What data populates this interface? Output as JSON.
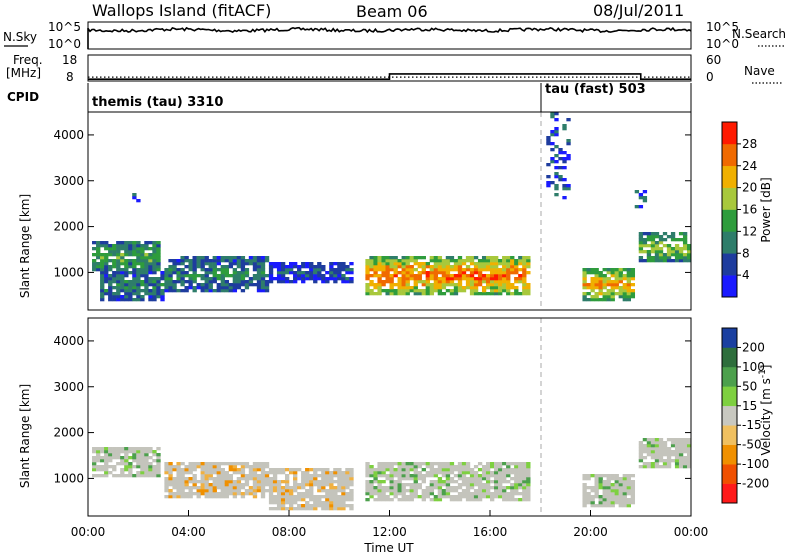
{
  "header": {
    "station": "Wallops Island (fitACF)",
    "beam": "Beam 06",
    "date": "08/Jul/2011"
  },
  "status_panels": {
    "nsky_label": "N.Sky",
    "nsearch_label": "N.Search",
    "noise_ticks": [
      "10^5",
      "10^0"
    ],
    "freq_label": "Freq.",
    "freq_unit": "[MHz]",
    "freq_ticks": [
      "18",
      "8"
    ],
    "nave_label": "Nave",
    "nave_ticks": [
      "60",
      "0"
    ],
    "cpid_label": "CPID",
    "cpid_modes": [
      {
        "name": "themis (tau) 3310",
        "start_hour": 0
      },
      {
        "name": "tau (fast) 503",
        "start_hour": 18
      }
    ],
    "freq_steps_mhz": [
      [
        0,
        8.7
      ],
      [
        12.0,
        10.7
      ],
      [
        22.0,
        8.7
      ],
      [
        24,
        8.7
      ]
    ],
    "nave_steps": [
      [
        0,
        9
      ],
      [
        12.0,
        9
      ],
      [
        18.0,
        9
      ],
      [
        24,
        9
      ]
    ]
  },
  "chart_data": [
    {
      "type": "heatmap",
      "panel": "power",
      "xlabel": "",
      "ylabel": "Slant Range [km]",
      "ylim": [
        180,
        4500
      ],
      "xlim_hours": [
        0,
        24
      ],
      "yticks": [
        1000,
        2000,
        3000,
        4000
      ],
      "colorbar": {
        "label": "Power [dB]",
        "ticks": [
          "4",
          "8",
          "12",
          "16",
          "20",
          "24",
          "28"
        ],
        "colors": [
          "#1a1aff",
          "#1e3c9e",
          "#2e7d6a",
          "#2e9c3c",
          "#a8c83c",
          "#f0b000",
          "#f06a00",
          "#ff1a00"
        ]
      },
      "echo_regions": [
        {
          "t0": 0.1,
          "t1": 2.9,
          "r0": 1000,
          "r1": 1700,
          "level": 0.45
        },
        {
          "t0": 0.5,
          "t1": 3.0,
          "r0": 400,
          "r1": 1000,
          "level": 0.35
        },
        {
          "t0": 3.0,
          "t1": 7.2,
          "r0": 550,
          "r1": 1350,
          "level": 0.35
        },
        {
          "t0": 7.2,
          "t1": 10.5,
          "r0": 800,
          "r1": 1250,
          "level": 0.2
        },
        {
          "t0": 11.0,
          "t1": 17.6,
          "r0": 500,
          "r1": 1350,
          "level": 0.85
        },
        {
          "t0": 19.7,
          "t1": 21.7,
          "r0": 400,
          "r1": 1100,
          "level": 0.75
        },
        {
          "t0": 22.0,
          "t1": 24.0,
          "r0": 1200,
          "r1": 1900,
          "level": 0.55
        }
      ],
      "scatter_regions": [
        {
          "t0": 18.2,
          "t1": 19.2,
          "r0": 2600,
          "r1": 4500
        },
        {
          "t0": 1.8,
          "t1": 2.1,
          "r0": 2400,
          "r1": 2700
        },
        {
          "t0": 21.8,
          "t1": 22.3,
          "r0": 2300,
          "r1": 2800
        }
      ]
    },
    {
      "type": "heatmap",
      "panel": "velocity",
      "xlabel": "Time UT",
      "ylabel": "Slant Range [km]",
      "ylim": [
        180,
        4500
      ],
      "xlim_hours": [
        0,
        24
      ],
      "yticks": [
        1000,
        2000,
        3000,
        4000
      ],
      "xticks": [
        "00:00",
        "04:00",
        "08:00",
        "12:00",
        "16:00",
        "20:00",
        "00:00"
      ],
      "colorbar": {
        "label": "Velocity [m s^-1]",
        "ticks": [
          "200",
          "100",
          "50",
          "15",
          "-15",
          "-50",
          "-100",
          "-200"
        ],
        "colors": [
          "#1a3fa0",
          "#2e6e3c",
          "#4ca04c",
          "#7ed040",
          "#c8c8c0",
          "#f0c060",
          "#f09000",
          "#f05000",
          "#ff1a1a"
        ]
      },
      "ground_scatter_color": "#c4c4bc",
      "echo_regions": [
        {
          "t0": 0.1,
          "t1": 2.9,
          "r0": 1000,
          "r1": 1700,
          "vel": -15
        },
        {
          "t0": 3.0,
          "t1": 7.2,
          "r0": 550,
          "r1": 1350,
          "vel": -40
        },
        {
          "t0": 7.2,
          "t1": 10.5,
          "r0": 300,
          "r1": 1250,
          "vel": -30
        },
        {
          "t0": 11.0,
          "t1": 17.6,
          "r0": 500,
          "r1": 1350,
          "vel": 0
        },
        {
          "t0": 19.7,
          "t1": 21.7,
          "r0": 400,
          "r1": 1100,
          "vel": 0
        },
        {
          "t0": 22.0,
          "t1": 24.0,
          "r0": 1200,
          "r1": 1900,
          "vel": 0
        }
      ]
    }
  ]
}
